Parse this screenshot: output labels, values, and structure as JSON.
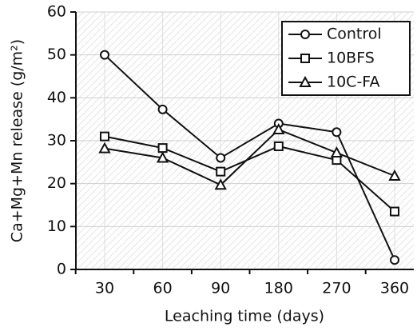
{
  "chart_data": {
    "type": "line",
    "x_label": "Leaching time (days)",
    "y_label": "Ca+Mg+Mn release (g/m²)",
    "categories": [
      "30",
      "60",
      "90",
      "180",
      "270",
      "360"
    ],
    "series": [
      {
        "name": "Control",
        "color": "#111111",
        "marker": "circle",
        "values": [
          50,
          37.3,
          26,
          34,
          32,
          2.2
        ]
      },
      {
        "name": "10BFS",
        "color": "#111111",
        "marker": "square",
        "values": [
          31,
          28.3,
          22.8,
          28.7,
          25.5,
          13.5
        ]
      },
      {
        "name": "10C-FA",
        "color": "#111111",
        "marker": "triangle",
        "values": [
          28.2,
          26,
          19.7,
          32.6,
          27.2,
          21.8
        ]
      }
    ],
    "ylim": [
      0,
      60
    ],
    "yticks": [
      0,
      10,
      20,
      30,
      40,
      50,
      60
    ],
    "grid": true,
    "legend": "top-right"
  }
}
